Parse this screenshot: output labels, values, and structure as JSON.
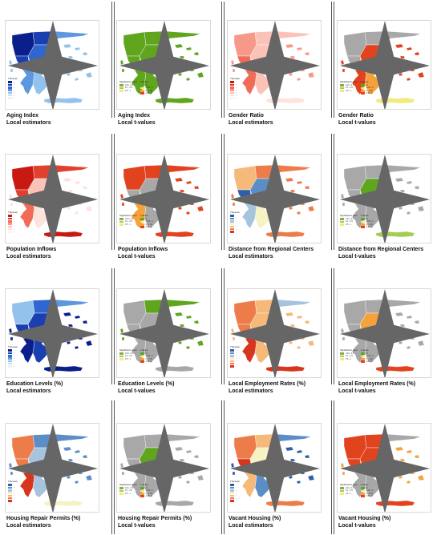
{
  "legend_title": "Thiessen",
  "tvalue_legend": {
    "col1_title": "Significance level",
    "col2_title": "t-values",
    "col1_items": [
      "0.01 - 0.1",
      "0.1 - 0.5",
      "0.5 - 1"
    ],
    "col2_items": [
      "-5",
      "-1.96 - 0",
      "0 - 1.96",
      "1.96 - 5"
    ]
  },
  "palettes": {
    "blue": [
      "#0b1f8c",
      "#1a3fb0",
      "#2f66cf",
      "#5d97e0",
      "#93c3ec",
      "#c8e1f2",
      "#eaf3f8"
    ],
    "red": [
      "#c81a12",
      "#e0402e",
      "#f06c58",
      "#f79988",
      "#fbc3b7",
      "#fde3dc",
      "#fff3ee"
    ],
    "diverging": [
      "#2d5ea8",
      "#5b8ec7",
      "#a6c4de",
      "#f6f2c4",
      "#f5b97a",
      "#ec7c4a",
      "#d8351e"
    ],
    "green": "#5fa51e",
    "grey": "#a8a8a8",
    "tval": [
      "#7fb23a",
      "#a7cc52",
      "#f2ea7a",
      "#f5a23c",
      "#e2431f"
    ]
  },
  "cells": [
    {
      "line1": "Aging Index",
      "line2": "Local estimators",
      "type": "est",
      "scheme": "blue_nw"
    },
    {
      "line1": "Aging Index",
      "line2": "Local t-values",
      "type": "tv",
      "scheme": "green_all"
    },
    {
      "line1": "Gender Ratio",
      "line2": "Local estimators",
      "type": "est",
      "scheme": "red_light"
    },
    {
      "line1": "Gender Ratio",
      "line2": "Local t-values",
      "type": "tv",
      "scheme": "red_south"
    },
    {
      "line1": "Population Inflows",
      "line2": "Local estimators",
      "type": "est",
      "scheme": "red_nw"
    },
    {
      "line1": "Population Inflows",
      "line2": "Local t-values",
      "type": "tv",
      "scheme": "red_mixed"
    },
    {
      "line1": "Distance from Regional Centers",
      "line2": "Local estimators",
      "type": "est",
      "scheme": "div_center"
    },
    {
      "line1": "Distance from Regional Centers",
      "line2": "Local t-values",
      "type": "tv",
      "scheme": "green_center"
    },
    {
      "line1": "Education Levels (%)",
      "line2": "Local estimators",
      "type": "est",
      "scheme": "blue_south"
    },
    {
      "line1": "Education Levels (%)",
      "line2": "Local t-values",
      "type": "tv",
      "scheme": "green_east"
    },
    {
      "line1": "Local Employment Rates (%)",
      "line2": "Local estimators",
      "type": "est",
      "scheme": "div_west"
    },
    {
      "line1": "Local Employment Rates (%)",
      "line2": "Local t-values",
      "type": "tv",
      "scheme": "green_small"
    },
    {
      "line1": "Housing Repair Permits (%)",
      "line2": "Local estimators",
      "type": "est",
      "scheme": "div_rwest"
    },
    {
      "line1": "Housing Repair Permits (%)",
      "line2": "Local t-values",
      "type": "tv",
      "scheme": "green_tiny"
    },
    {
      "line1": "Vacant Housing (%)",
      "line2": "Local estimators",
      "type": "est",
      "scheme": "div_vacant"
    },
    {
      "line1": "Vacant Housing (%)",
      "line2": "Local t-values",
      "type": "tv",
      "scheme": "red_north"
    }
  ]
}
